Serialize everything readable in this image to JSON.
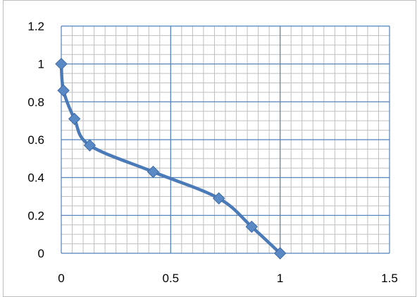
{
  "chart_data": {
    "type": "line",
    "title": "",
    "xlabel": "",
    "ylabel": "",
    "xlim": [
      0,
      1.5
    ],
    "ylim": [
      0,
      1.2
    ],
    "x_ticks": [
      0,
      0.5,
      1,
      1.5
    ],
    "x_tick_labels": [
      "0",
      "0.5",
      "1",
      "1.5"
    ],
    "y_ticks": [
      0,
      0.2,
      0.4,
      0.6,
      0.8,
      1,
      1.2
    ],
    "y_tick_labels": [
      "0",
      "0.2",
      "0.4",
      "0.6",
      "0.8",
      "1",
      "1.2"
    ],
    "grid": true,
    "legend": "none",
    "series": [
      {
        "x": [
          0,
          0.01,
          0.06,
          0.13,
          0.42,
          0.72,
          0.87,
          1
        ],
        "y": [
          1,
          0.86,
          0.71,
          0.57,
          0.43,
          0.29,
          0.14,
          0
        ],
        "marker": "diamond",
        "color": "#4a7ab8"
      }
    ],
    "colors": {
      "major_grid": "#4f81bd",
      "minor_grid": "#bfbfbf",
      "series": "#4a7ab8",
      "marker_fill": "#5a8ac6"
    }
  }
}
